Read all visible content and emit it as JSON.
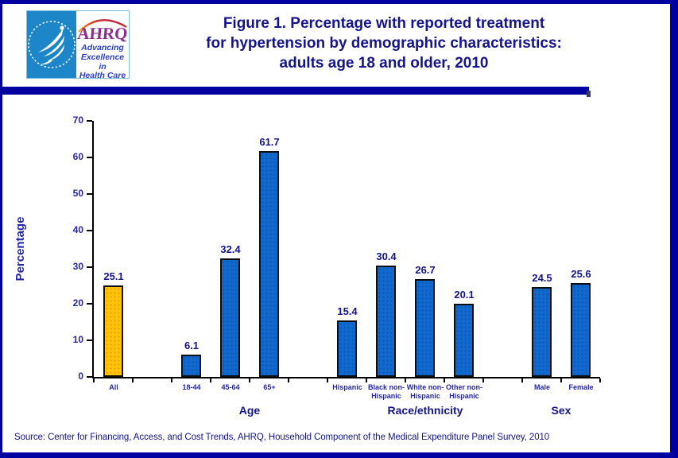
{
  "page": {
    "frame_color": "#0000A0",
    "background": "#FFFFFF"
  },
  "header": {
    "logo": {
      "hhs_seal": "Department of Health & Human Services USA seal",
      "ahrq_acronym": "AHRQ",
      "tagline_lines": [
        "Advancing",
        "Excellence in",
        "Health Care"
      ]
    },
    "title_lines": [
      "Figure 1. Percentage with reported treatment",
      "for hypertension by demographic characteristics:",
      "adults age 18 and older, 2010"
    ]
  },
  "chart_data": {
    "type": "bar",
    "title": "Figure 1. Percentage with reported treatment for hypertension by demographic characteristics: adults age 18 and older, 2010",
    "xlabel": "",
    "ylabel": "Percentage",
    "ylim": [
      0,
      70
    ],
    "yticks": [
      0,
      10,
      20,
      30,
      40,
      50,
      60,
      70
    ],
    "grid": false,
    "legend": "none",
    "default_bar_color": "#1169D0",
    "highlight_color": "#FFC40A",
    "groups": [
      {
        "label": "",
        "categories": [
          "All"
        ],
        "values": [
          25.1
        ],
        "colors": [
          "#FFC40A"
        ]
      },
      {
        "label": "Age",
        "categories": [
          "18-44",
          "45-64",
          "65+"
        ],
        "values": [
          6.1,
          32.4,
          61.7
        ]
      },
      {
        "label": "Race/ethnicity",
        "categories": [
          "Hispanic",
          "Black non-Hispanic",
          "White non-Hispanic",
          "Other non-Hispanic"
        ],
        "values": [
          15.4,
          30.4,
          26.7,
          20.1
        ]
      },
      {
        "label": "Sex",
        "categories": [
          "Male",
          "Female"
        ],
        "values": [
          24.5,
          25.6
        ]
      }
    ]
  },
  "footer": {
    "source": "Source: Center for Financing, Access, and Cost Trends, AHRQ, Household Component of the Medical Expenditure Panel Survey, 2010"
  }
}
